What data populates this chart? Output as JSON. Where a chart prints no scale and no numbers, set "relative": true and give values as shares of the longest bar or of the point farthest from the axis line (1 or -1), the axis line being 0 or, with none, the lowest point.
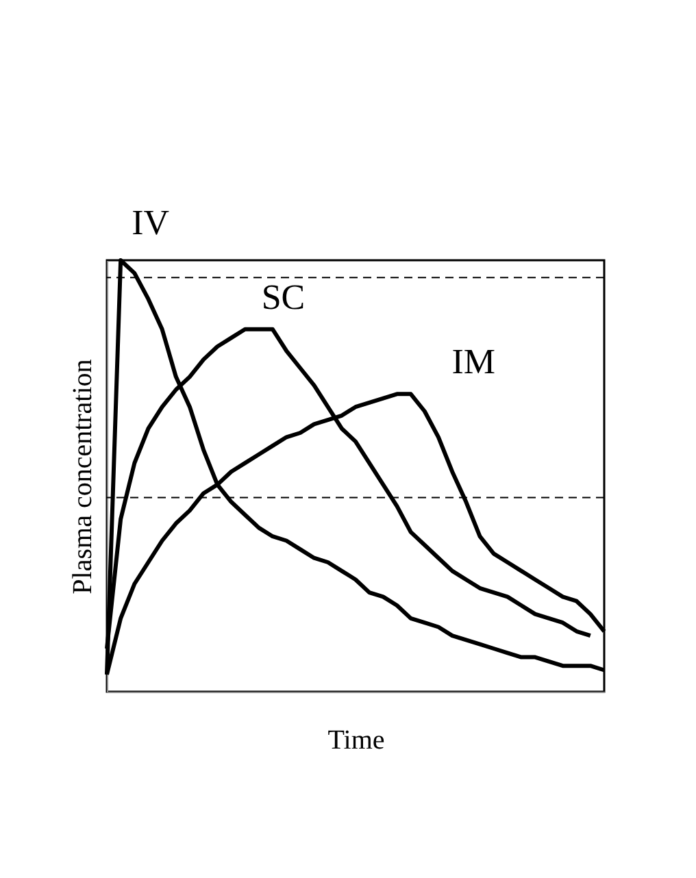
{
  "chart_data": {
    "type": "line",
    "relative": true,
    "xlabel": "Time",
    "ylabel": "Plasma concentration",
    "categories": [
      null,
      null,
      null,
      null,
      null,
      null,
      null,
      null,
      null,
      null,
      null,
      null,
      null,
      null,
      null,
      null,
      null,
      null,
      null,
      null,
      null,
      null,
      null,
      null,
      null,
      null,
      null,
      null,
      null,
      null,
      null,
      null,
      null,
      null,
      null,
      null,
      null
    ],
    "series": [
      {
        "name": "IV",
        "color": "#000000",
        "values": [
          0.04,
          1,
          0.97,
          0.91,
          0.84,
          0.73,
          0.66,
          0.56,
          0.48,
          0.44,
          0.41,
          0.38,
          0.36,
          0.35,
          0.33,
          0.31,
          0.3,
          0.28,
          0.26,
          0.23,
          0.22,
          0.2,
          0.17,
          0.16,
          0.15,
          0.13,
          0.12,
          0.11,
          0.1,
          0.09,
          0.08,
          0.08,
          0.07,
          0.06,
          0.06,
          0.06,
          0.05
        ]
      },
      {
        "name": "SC",
        "color": "#000000",
        "values": [
          0.1,
          0.4,
          0.53,
          0.61,
          0.66,
          0.7,
          0.73,
          0.77,
          0.8,
          0.82,
          0.84,
          0.84,
          0.84,
          0.79,
          0.75,
          0.71,
          0.66,
          0.61,
          0.58,
          0.53,
          0.48,
          0.43,
          0.37,
          0.34,
          0.31,
          0.28,
          0.26,
          0.24,
          0.23,
          0.22,
          0.2,
          0.18,
          0.17,
          0.16,
          0.14,
          0.13,
          null
        ]
      },
      {
        "name": "IM",
        "color": "#000000",
        "values": [
          0.04,
          0.17,
          0.25,
          0.3,
          0.35,
          0.39,
          0.42,
          0.46,
          0.48,
          0.51,
          0.53,
          0.55,
          0.57,
          0.59,
          0.6,
          0.62,
          0.63,
          0.64,
          0.66,
          0.67,
          0.68,
          0.69,
          0.69,
          0.65,
          0.59,
          0.51,
          0.44,
          0.36,
          0.32,
          0.3,
          0.28,
          0.26,
          0.24,
          0.22,
          0.21,
          0.18,
          0.14
        ]
      }
    ],
    "ref_lines": [
      {
        "axis": "y",
        "value": 0.96,
        "line_style": "dashed",
        "color": "#000000"
      },
      {
        "axis": "y",
        "value": 0.45,
        "line_style": "dashed",
        "color": "#000000"
      }
    ],
    "grid": false,
    "legend": false,
    "marker": "none",
    "line_style": "solid"
  }
}
